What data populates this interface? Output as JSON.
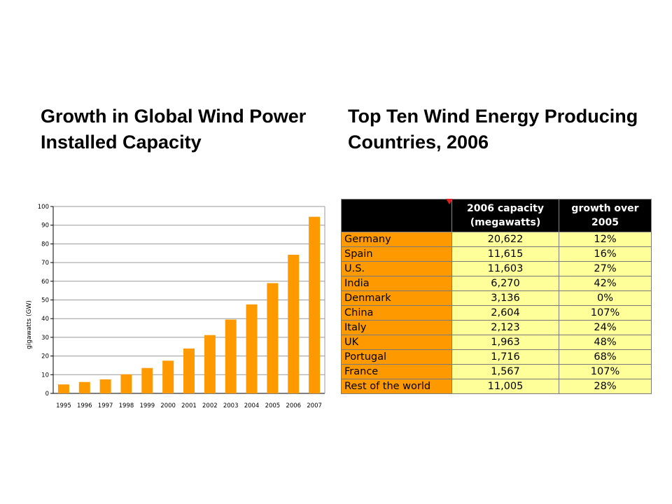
{
  "left_heading": {
    "line1": "Growth in Global Wind Power",
    "line2": "Installed Capacity"
  },
  "right_heading": {
    "line1": "Top Ten Wind Energy Producing",
    "line2": "Countries, 2006"
  },
  "chart_data": {
    "type": "bar",
    "categories": [
      "1995",
      "1996",
      "1997",
      "1998",
      "1999",
      "2000",
      "2001",
      "2002",
      "2003",
      "2004",
      "2005",
      "2006",
      "2007"
    ],
    "values": [
      4.8,
      6.1,
      7.5,
      10.2,
      13.6,
      17.5,
      24.0,
      31.2,
      39.5,
      47.6,
      59.0,
      74.2,
      94.5
    ],
    "title": "",
    "xlabel": "",
    "ylabel": "gigawatts (GW)",
    "ylim": [
      0,
      100
    ],
    "yticks": [
      0,
      10,
      20,
      30,
      40,
      50,
      60,
      70,
      80,
      90,
      100
    ],
    "grid": true,
    "bar_color": "#ff9900"
  },
  "table": {
    "headers": [
      "",
      "2006 capacity\n(megawatts)",
      "growth over\n2005"
    ],
    "header_lines": [
      [
        "",
        ""
      ],
      [
        "2006 capacity",
        "(megawatts)"
      ],
      [
        "growth over",
        "2005"
      ]
    ],
    "rows": [
      [
        "Germany",
        "20,622",
        "12%"
      ],
      [
        "Spain",
        "11,615",
        "16%"
      ],
      [
        "U.S.",
        "11,603",
        "27%"
      ],
      [
        "India",
        "6,270",
        "42%"
      ],
      [
        "Denmark",
        "3,136",
        "0%"
      ],
      [
        "China",
        "2,604",
        "107%"
      ],
      [
        "Italy",
        "2,123",
        "24%"
      ],
      [
        "UK",
        "1,963",
        "48%"
      ],
      [
        "Portugal",
        "1,716",
        "68%"
      ],
      [
        "France",
        "1,567",
        "107%"
      ],
      [
        "Rest of the world",
        "11,005",
        "28%"
      ]
    ],
    "country_color": "#ff9900",
    "value_color": "#ffff99",
    "header_color": "#000000"
  }
}
